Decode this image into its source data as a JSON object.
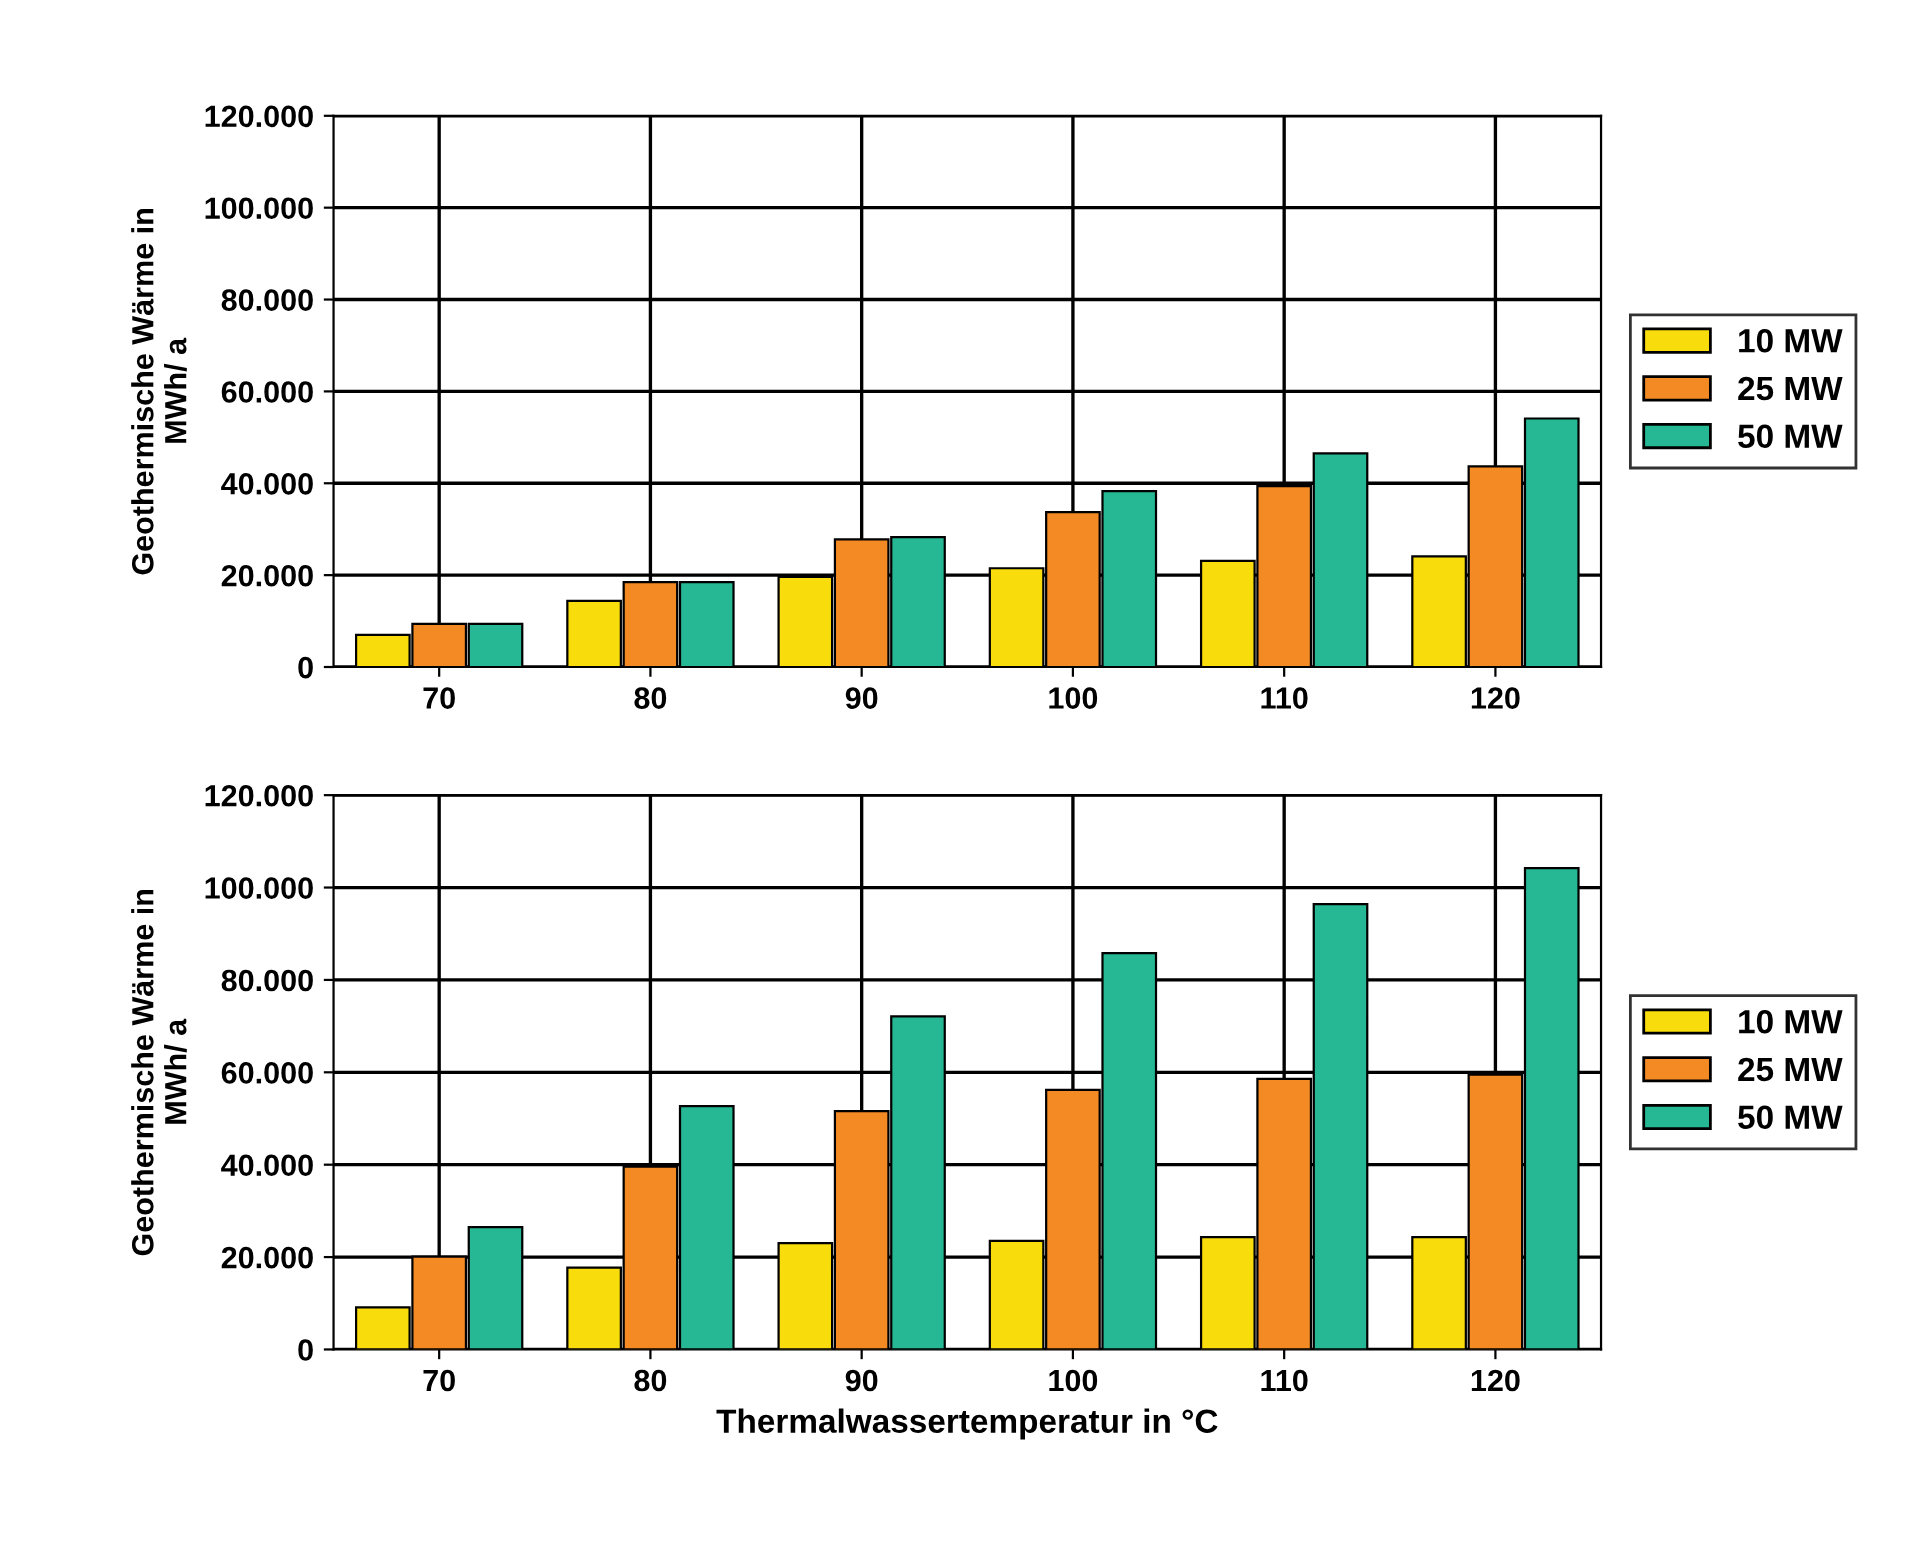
{
  "chart_data": [
    {
      "type": "bar",
      "ylabel": "Geothermische Wärme in\nMWh/ a",
      "categories": [
        "70",
        "80",
        "90",
        "100",
        "110",
        "120"
      ],
      "series": [
        {
          "name": "10 MW",
          "color": "#f9dc0c",
          "values": [
            7000,
            14400,
            19600,
            21500,
            23100,
            24100
          ]
        },
        {
          "name": "25 MW",
          "color": "#f48a23",
          "values": [
            9400,
            18500,
            27800,
            33700,
            39400,
            43700
          ]
        },
        {
          "name": "50 MW",
          "color": "#26b894",
          "values": [
            9400,
            18500,
            28300,
            38300,
            46500,
            54100
          ]
        }
      ],
      "ylim": [
        0,
        120000
      ],
      "yticks": [
        {
          "value": 0,
          "label": "0"
        },
        {
          "value": 20000,
          "label": "20.000"
        },
        {
          "value": 40000,
          "label": "40.000"
        },
        {
          "value": 60000,
          "label": "60.000"
        },
        {
          "value": 80000,
          "label": "80.000"
        },
        {
          "value": 100000,
          "label": "100.000"
        },
        {
          "value": 120000,
          "label": "120.000"
        }
      ],
      "grid": true,
      "legend": "right"
    },
    {
      "type": "bar",
      "ylabel": "Geothermische Wärme in\nMWh/ a",
      "xlabel": "Thermalwassertemperatur in °C",
      "categories": [
        "70",
        "80",
        "90",
        "100",
        "110",
        "120"
      ],
      "series": [
        {
          "name": "10 MW",
          "color": "#f9dc0c",
          "values": [
            9100,
            17700,
            23000,
            23500,
            24300,
            24300
          ]
        },
        {
          "name": "25 MW",
          "color": "#f48a23",
          "values": [
            20100,
            39600,
            51600,
            56200,
            58600,
            59500
          ]
        },
        {
          "name": "50 MW",
          "color": "#26b894",
          "values": [
            26500,
            52700,
            72100,
            85800,
            96400,
            104200
          ]
        }
      ],
      "ylim": [
        0,
        120000
      ],
      "yticks": [
        {
          "value": 0,
          "label": "0"
        },
        {
          "value": 20000,
          "label": "20.000"
        },
        {
          "value": 40000,
          "label": "40.000"
        },
        {
          "value": 60000,
          "label": "60.000"
        },
        {
          "value": 80000,
          "label": "80.000"
        },
        {
          "value": 100000,
          "label": "100.000"
        },
        {
          "value": 120000,
          "label": "120.000"
        }
      ],
      "grid": true,
      "legend": "right"
    }
  ]
}
